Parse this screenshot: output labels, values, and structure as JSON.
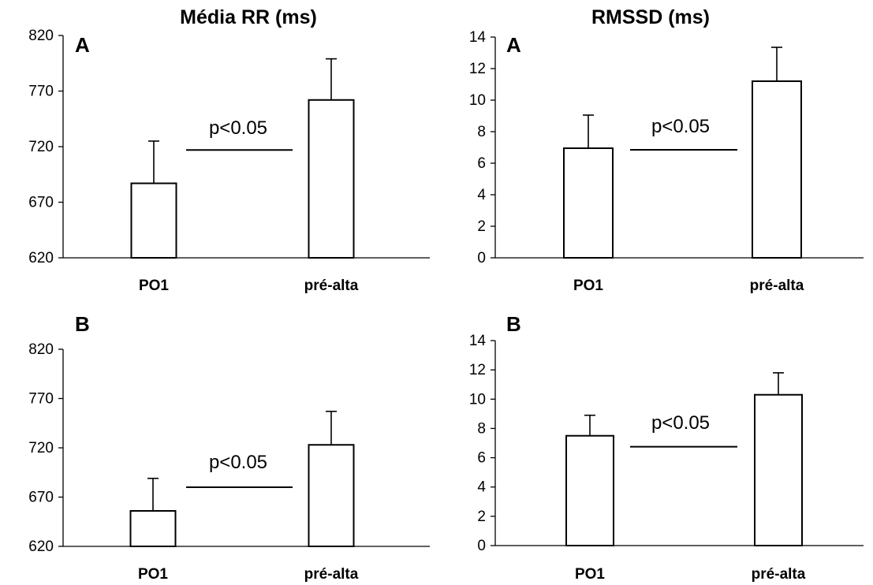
{
  "titles": {
    "left": "Média RR (ms)",
    "right": "RMSSD (ms)"
  },
  "chart_data": [
    {
      "type": "bar",
      "panel_label": "A",
      "categories": [
        "PO1",
        "pré-alta"
      ],
      "values": [
        687,
        762
      ],
      "error": [
        38,
        37
      ],
      "ylim": [
        620,
        820
      ],
      "yticks": [
        620,
        670,
        720,
        770,
        820
      ],
      "annotation": "p<0.05",
      "annotation_line_y": 717
    },
    {
      "type": "bar",
      "panel_label": "A",
      "categories": [
        "PO1",
        "pré-alta"
      ],
      "values": [
        6.95,
        11.2
      ],
      "error": [
        2.1,
        2.15
      ],
      "ylim": [
        0,
        14
      ],
      "yticks": [
        0,
        2,
        4,
        6,
        8,
        10,
        12,
        14
      ],
      "annotation": "p<0.05",
      "annotation_line_y": 6.85
    },
    {
      "type": "bar",
      "panel_label": "B",
      "categories": [
        "PO1",
        "pré-alta"
      ],
      "values": [
        656,
        723
      ],
      "error": [
        33,
        34
      ],
      "ylim": [
        620,
        820
      ],
      "yticks": [
        620,
        670,
        720,
        770,
        820
      ],
      "annotation": "p<0.05",
      "annotation_line_y": 680
    },
    {
      "type": "bar",
      "panel_label": "B",
      "categories": [
        "PO1",
        "pré-alta"
      ],
      "values": [
        7.5,
        10.3
      ],
      "error": [
        1.4,
        1.5
      ],
      "ylim": [
        0,
        14
      ],
      "yticks": [
        0,
        2,
        4,
        6,
        8,
        10,
        12,
        14
      ],
      "annotation": "p<0.05",
      "annotation_line_y": 6.75
    }
  ]
}
